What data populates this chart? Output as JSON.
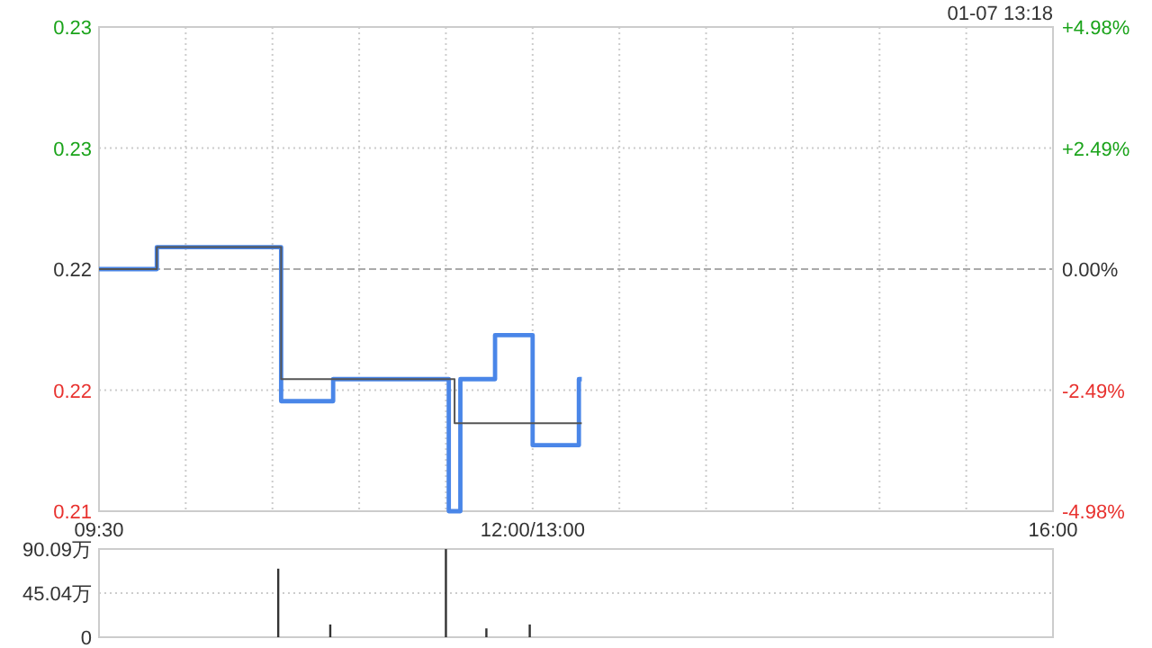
{
  "chart_data": [
    {
      "type": "step",
      "annotations": [
        "01-07 13:18"
      ],
      "categories": [
        "09:30",
        null,
        null,
        null,
        null,
        null,
        null,
        null,
        null,
        null,
        null,
        null,
        null,
        null,
        null,
        null,
        null,
        null,
        null,
        null,
        null,
        null,
        null,
        null,
        null,
        null,
        null,
        null,
        null,
        null,
        null,
        null,
        null,
        null,
        null,
        null,
        null,
        null,
        null,
        null,
        null,
        null,
        null,
        null,
        null,
        null,
        null,
        null,
        null,
        null,
        null,
        null,
        null,
        null,
        null,
        null,
        null,
        null,
        null,
        null,
        null,
        null,
        null,
        null,
        null,
        null,
        null,
        null,
        null,
        null,
        null,
        null,
        null,
        null,
        null,
        null,
        null,
        null,
        null,
        null,
        null,
        null,
        null,
        null,
        null,
        null,
        null,
        null,
        null,
        null,
        null,
        null,
        null,
        null,
        null,
        null,
        null,
        null,
        null,
        null,
        null,
        null,
        null,
        null,
        null,
        null,
        null,
        null,
        null,
        null,
        null,
        null,
        null,
        null,
        null,
        null,
        null,
        null,
        null,
        null,
        null,
        null,
        null,
        null,
        null,
        null,
        null,
        null,
        null,
        null,
        null,
        null,
        null,
        null,
        null,
        null,
        null,
        null,
        null,
        null,
        null,
        null,
        null,
        null,
        null,
        null,
        null,
        null,
        null,
        null,
        "12:00/13:00",
        null,
        null,
        null,
        null,
        null,
        null,
        null,
        null,
        null,
        null,
        null,
        null,
        null,
        null,
        null,
        null,
        null,
        null,
        null,
        null,
        null,
        null,
        null,
        null,
        null,
        null,
        null,
        null,
        null,
        null,
        null,
        null,
        null,
        null,
        null,
        null,
        null,
        null,
        null,
        null,
        null,
        null,
        null,
        null,
        null,
        null,
        null,
        null,
        null,
        null,
        null,
        null,
        null,
        null,
        null,
        null,
        null,
        null,
        null,
        null,
        null,
        null,
        null,
        null,
        null,
        null,
        null,
        null,
        null,
        null,
        null,
        null,
        null,
        null,
        null,
        null,
        null,
        null,
        null,
        null,
        null,
        null,
        null,
        null,
        null,
        null,
        null,
        null,
        null,
        null,
        null,
        null,
        null,
        null,
        null,
        null,
        null,
        null,
        null,
        null,
        null,
        null,
        null,
        null,
        null,
        null,
        null,
        null,
        null,
        null,
        null,
        null,
        null,
        null,
        null,
        null,
        null,
        null,
        null,
        null,
        null,
        null,
        null,
        null,
        null,
        null,
        null,
        null,
        null,
        null,
        null,
        null,
        null,
        null,
        null,
        null,
        null,
        null,
        null,
        null,
        null,
        null,
        null,
        null,
        null,
        null,
        null,
        null,
        null,
        null,
        null,
        null,
        null,
        null,
        null,
        null,
        null,
        null,
        null,
        null,
        null,
        null,
        null,
        null,
        null,
        null,
        null,
        null,
        null,
        null,
        null,
        null,
        null,
        null,
        null,
        null,
        null,
        null,
        null,
        "16:00"
      ],
      "ylim": [
        0.21,
        0.232
      ],
      "yticks": [
        {
          "value": 0.21,
          "label": "0.21"
        },
        {
          "value": 0.2155,
          "label": "0.22"
        },
        {
          "value": 0.221,
          "label": "0.22"
        },
        {
          "value": 0.2265,
          "label": "0.23"
        },
        {
          "value": 0.232,
          "label": "0.23"
        }
      ],
      "y2lim": [
        -4.98,
        4.98
      ],
      "y2ticks": [
        {
          "value": -4.98,
          "label": "-4.98%"
        },
        {
          "value": -2.49,
          "label": "-2.49%"
        },
        {
          "value": 0,
          "label": "0.00%"
        },
        {
          "value": 2.49,
          "label": "+2.49%"
        },
        {
          "value": 4.98,
          "label": "+4.98%"
        }
      ],
      "grid": true,
      "line_style": "solid",
      "ref_lines": [
        {
          "axis": "y",
          "value": 0.221,
          "color": "#aaaaaa",
          "line_style": "dashed"
        }
      ],
      "series": [
        {
          "color": "#4a86e8",
          "values": [
            0.221,
            0.221,
            0.221,
            0.221,
            0.221,
            0.221,
            0.221,
            0.221,
            0.221,
            0.221,
            0.221,
            0.221,
            0.221,
            0.221,
            0.221,
            0.221,
            0.221,
            0.221,
            0.221,
            0.221,
            0.222,
            0.222,
            0.222,
            0.222,
            0.222,
            0.222,
            0.222,
            0.222,
            0.222,
            0.222,
            0.222,
            0.222,
            0.222,
            0.222,
            0.222,
            0.222,
            0.222,
            0.222,
            0.222,
            0.222,
            0.222,
            0.222,
            0.222,
            0.222,
            0.222,
            0.222,
            0.222,
            0.222,
            0.222,
            0.222,
            0.222,
            0.222,
            0.222,
            0.222,
            0.222,
            0.222,
            0.222,
            0.222,
            0.222,
            0.222,
            0.222,
            0.222,
            0.222,
            0.215,
            0.215,
            0.215,
            0.215,
            0.215,
            0.215,
            0.215,
            0.215,
            0.215,
            0.215,
            0.215,
            0.215,
            0.215,
            0.215,
            0.215,
            0.215,
            0.215,
            0.215,
            0.216,
            0.216,
            0.216,
            0.216,
            0.216,
            0.216,
            0.216,
            0.216,
            0.216,
            0.216,
            0.216,
            0.216,
            0.216,
            0.216,
            0.216,
            0.216,
            0.216,
            0.216,
            0.216,
            0.216,
            0.216,
            0.216,
            0.216,
            0.216,
            0.216,
            0.216,
            0.216,
            0.216,
            0.216,
            0.216,
            0.216,
            0.216,
            0.216,
            0.216,
            0.216,
            0.216,
            0.216,
            0.216,
            0.216,
            0.216,
            0.21,
            0.21,
            0.21,
            0.21,
            0.216,
            0.216,
            0.216,
            0.216,
            0.216,
            0.216,
            0.216,
            0.216,
            0.216,
            0.216,
            0.216,
            0.216,
            0.218,
            0.218,
            0.218,
            0.218,
            0.218,
            0.218,
            0.218,
            0.218,
            0.218,
            0.218,
            0.218,
            0.218,
            0.218,
            0.213,
            0.213,
            0.213,
            0.213,
            0.213,
            0.213,
            0.213,
            0.213,
            0.213,
            0.213,
            0.213,
            0.213,
            0.213,
            0.213,
            0.213,
            0.213,
            0.216,
            0.216,
            null,
            null,
            null,
            null,
            null,
            null,
            null,
            null,
            null,
            null,
            null,
            null,
            null,
            null,
            null,
            null,
            null,
            null,
            null,
            null,
            null,
            null,
            null,
            null,
            null,
            null,
            null,
            null,
            null,
            null,
            null,
            null,
            null,
            null,
            null,
            null,
            null,
            null,
            null,
            null,
            null,
            null,
            null,
            null,
            null,
            null,
            null,
            null,
            null,
            null,
            null,
            null,
            null,
            null,
            null,
            null,
            null,
            null,
            null,
            null,
            null,
            null,
            null,
            null,
            null,
            null,
            null,
            null,
            null,
            null,
            null,
            null,
            null,
            null,
            null,
            null,
            null,
            null,
            null,
            null,
            null,
            null,
            null,
            null,
            null,
            null,
            null,
            null,
            null,
            null,
            null,
            null,
            null,
            null,
            null,
            null,
            null,
            null,
            null,
            null,
            null,
            null,
            null,
            null,
            null,
            null,
            null,
            null,
            null,
            null,
            null,
            null,
            null,
            null,
            null,
            null,
            null,
            null,
            null,
            null,
            null,
            null,
            null,
            null,
            null,
            null,
            null,
            null,
            null,
            null,
            null,
            null,
            null,
            null,
            null,
            null,
            null,
            null,
            null,
            null,
            null,
            null,
            null,
            null,
            null,
            null,
            null,
            null,
            null,
            null,
            null,
            null,
            null,
            null,
            null,
            null,
            null,
            null,
            null,
            null,
            null,
            null,
            null
          ]
        },
        {
          "color": "#555555",
          "values": [
            0.221,
            0.221,
            0.221,
            0.221,
            0.221,
            0.221,
            0.221,
            0.221,
            0.221,
            0.221,
            0.221,
            0.221,
            0.221,
            0.221,
            0.221,
            0.221,
            0.221,
            0.221,
            0.221,
            0.221,
            0.222,
            0.222,
            0.222,
            0.222,
            0.222,
            0.222,
            0.222,
            0.222,
            0.222,
            0.222,
            0.222,
            0.222,
            0.222,
            0.222,
            0.222,
            0.222,
            0.222,
            0.222,
            0.222,
            0.222,
            0.222,
            0.222,
            0.222,
            0.222,
            0.222,
            0.222,
            0.222,
            0.222,
            0.222,
            0.222,
            0.222,
            0.222,
            0.222,
            0.222,
            0.222,
            0.222,
            0.222,
            0.222,
            0.222,
            0.222,
            0.222,
            0.222,
            0.222,
            0.216,
            0.216,
            0.216,
            0.216,
            0.216,
            0.216,
            0.216,
            0.216,
            0.216,
            0.216,
            0.216,
            0.216,
            0.216,
            0.216,
            0.216,
            0.216,
            0.216,
            0.216,
            0.216,
            0.216,
            0.216,
            0.216,
            0.216,
            0.216,
            0.216,
            0.216,
            0.216,
            0.216,
            0.216,
            0.216,
            0.216,
            0.216,
            0.216,
            0.216,
            0.216,
            0.216,
            0.216,
            0.216,
            0.216,
            0.216,
            0.216,
            0.216,
            0.216,
            0.216,
            0.216,
            0.216,
            0.216,
            0.216,
            0.216,
            0.216,
            0.216,
            0.216,
            0.216,
            0.216,
            0.216,
            0.216,
            0.216,
            0.216,
            0.216,
            0.216,
            0.214,
            0.214,
            0.214,
            0.214,
            0.214,
            0.214,
            0.214,
            0.214,
            0.214,
            0.214,
            0.214,
            0.214,
            0.214,
            0.214,
            0.214,
            0.214,
            0.214,
            0.214,
            0.214,
            0.214,
            0.214,
            0.214,
            0.214,
            0.214,
            0.214,
            0.214,
            0.214,
            0.214,
            0.214,
            0.214,
            0.214,
            0.214,
            0.214,
            0.214,
            0.214,
            0.214,
            0.214,
            0.214,
            0.214,
            0.214,
            0.214,
            0.214,
            0.214,
            0.214,
            0.214,
            null,
            null,
            null,
            null,
            null,
            null,
            null,
            null,
            null,
            null,
            null,
            null,
            null,
            null,
            null,
            null,
            null,
            null,
            null,
            null,
            null,
            null,
            null,
            null,
            null,
            null,
            null,
            null,
            null,
            null,
            null,
            null,
            null,
            null,
            null,
            null,
            null,
            null,
            null,
            null,
            null,
            null,
            null,
            null,
            null,
            null,
            null,
            null,
            null,
            null,
            null,
            null,
            null,
            null,
            null,
            null,
            null,
            null,
            null,
            null,
            null,
            null,
            null,
            null,
            null,
            null,
            null,
            null,
            null,
            null,
            null,
            null,
            null,
            null,
            null,
            null,
            null,
            null,
            null,
            null,
            null,
            null,
            null,
            null,
            null,
            null,
            null,
            null,
            null,
            null,
            null,
            null,
            null,
            null,
            null,
            null,
            null,
            null,
            null,
            null,
            null,
            null,
            null,
            null,
            null,
            null,
            null,
            null,
            null,
            null,
            null,
            null,
            null,
            null,
            null,
            null,
            null,
            null,
            null,
            null,
            null,
            null,
            null,
            null,
            null,
            null,
            null,
            null,
            null,
            null,
            null,
            null,
            null,
            null,
            null,
            null,
            null,
            null,
            null,
            null,
            null,
            null,
            null,
            null,
            null,
            null,
            null,
            null,
            null,
            null,
            null,
            null,
            null,
            null,
            null,
            null,
            null,
            null,
            null,
            null,
            null,
            null,
            null
          ]
        }
      ]
    },
    {
      "type": "bar",
      "categories": [
        null,
        null,
        null,
        null,
        null,
        null,
        null,
        null,
        null,
        null,
        null,
        null,
        null,
        null,
        null,
        null,
        null,
        null,
        null,
        null,
        null,
        null,
        null,
        null,
        null,
        null,
        null,
        null,
        null,
        null,
        null,
        null,
        null,
        null,
        null,
        null,
        null,
        null,
        null,
        null,
        null,
        null,
        null,
        null,
        null,
        null,
        null,
        null,
        null,
        null,
        null,
        null,
        null,
        null,
        null,
        null,
        null,
        null,
        null,
        null,
        null,
        null,
        null,
        null,
        null,
        null,
        null,
        null,
        null,
        null,
        null,
        null,
        null,
        null,
        null,
        null,
        null,
        null,
        null,
        null,
        null,
        null,
        null,
        null,
        null,
        null,
        null,
        null,
        null,
        null,
        null,
        null,
        null,
        null,
        null,
        null,
        null,
        null,
        null,
        null,
        null,
        null,
        null,
        null,
        null,
        null,
        null,
        null,
        null,
        null,
        null,
        null,
        null,
        null,
        null,
        null,
        null,
        null,
        null,
        null,
        null,
        null,
        null,
        null,
        null,
        null,
        null,
        null,
        null,
        null,
        null,
        null,
        null,
        null,
        null,
        null,
        null,
        null,
        null,
        null,
        null,
        null,
        null,
        null,
        null,
        null,
        null,
        null,
        null,
        null,
        null,
        null,
        null,
        null,
        null,
        null,
        null,
        null,
        null,
        null,
        null,
        null,
        null,
        null,
        null,
        null,
        null,
        null,
        null,
        null,
        null,
        null,
        null,
        null,
        null,
        null,
        null,
        null,
        null,
        null,
        null,
        null,
        null,
        null,
        null,
        null,
        null,
        null,
        null,
        null,
        null,
        null,
        null,
        null,
        null,
        null,
        null,
        null,
        null,
        null,
        null,
        null,
        null,
        null,
        null,
        null,
        null,
        null,
        null,
        null,
        null,
        null,
        null,
        null,
        null,
        null,
        null,
        null,
        null,
        null,
        null,
        null,
        null,
        null,
        null,
        null,
        null,
        null,
        null,
        null,
        null,
        null,
        null,
        null,
        null,
        null,
        null,
        null,
        null,
        null,
        null,
        null,
        null,
        null,
        null,
        null,
        null,
        null,
        null,
        null,
        null,
        null,
        null,
        null,
        null,
        null,
        null,
        null,
        null,
        null,
        null,
        null,
        null,
        null,
        null,
        null,
        null,
        null,
        null,
        null,
        null,
        null,
        null,
        null,
        null,
        null,
        null,
        null,
        null,
        null,
        null,
        null,
        null,
        null,
        null,
        null,
        null,
        null,
        null,
        null,
        null,
        null,
        null,
        null,
        null,
        null,
        null,
        null,
        null,
        null,
        null,
        null,
        null,
        null,
        null,
        null,
        null,
        null,
        null,
        null,
        null,
        null,
        null,
        null,
        null,
        null,
        null,
        null,
        null,
        null,
        null,
        null,
        null,
        null,
        null,
        null,
        null,
        null,
        null,
        null,
        null
      ],
      "ylim": [
        0,
        90.09
      ],
      "yticks": [
        0,
        {
          "value": 45.04,
          "label": "45.04万"
        },
        {
          "value": 90.09,
          "label": "90.09万"
        }
      ],
      "grid": "y",
      "color": "#333333",
      "values": [
        null,
        null,
        null,
        null,
        null,
        null,
        null,
        null,
        null,
        null,
        null,
        null,
        null,
        null,
        null,
        null,
        null,
        null,
        null,
        null,
        null,
        null,
        null,
        null,
        null,
        null,
        null,
        null,
        null,
        null,
        null,
        null,
        null,
        null,
        null,
        null,
        null,
        null,
        null,
        null,
        null,
        null,
        null,
        null,
        null,
        null,
        null,
        null,
        null,
        null,
        null,
        null,
        null,
        null,
        null,
        null,
        null,
        null,
        null,
        null,
        null,
        null,
        70,
        null,
        null,
        null,
        null,
        null,
        null,
        null,
        null,
        null,
        null,
        null,
        null,
        null,
        null,
        null,
        null,
        null,
        13,
        null,
        null,
        null,
        null,
        null,
        null,
        null,
        null,
        null,
        null,
        null,
        null,
        null,
        null,
        null,
        null,
        null,
        null,
        null,
        null,
        null,
        null,
        null,
        null,
        null,
        null,
        null,
        null,
        null,
        null,
        null,
        null,
        null,
        null,
        null,
        null,
        null,
        null,
        null,
        90,
        null,
        null,
        null,
        null,
        null,
        null,
        null,
        null,
        null,
        null,
        null,
        null,
        null,
        9,
        null,
        null,
        null,
        null,
        null,
        null,
        null,
        null,
        null,
        null,
        null,
        null,
        null,
        null,
        13,
        null,
        null,
        null,
        null,
        null,
        null,
        null,
        null,
        null,
        null,
        null,
        null,
        null,
        null,
        null,
        null,
        null,
        null,
        null,
        null,
        null,
        null,
        null,
        null,
        null,
        null,
        null,
        null,
        null,
        null,
        null,
        null,
        null,
        null,
        null,
        null,
        null,
        null,
        null,
        null,
        null,
        null,
        null,
        null,
        null,
        null,
        null,
        null,
        null,
        null,
        null,
        null,
        null,
        null,
        null,
        null,
        null,
        null,
        null,
        null,
        null,
        null,
        null,
        null,
        null,
        null,
        null,
        null,
        null,
        null,
        null,
        null,
        null,
        null,
        null,
        null,
        null,
        null,
        null,
        null,
        null,
        null,
        null,
        null,
        null,
        null,
        null,
        null,
        null,
        null,
        null,
        null,
        null,
        null,
        null,
        null,
        null,
        null,
        null,
        null,
        null,
        null,
        null,
        null,
        null,
        null,
        null,
        null,
        null,
        null,
        null,
        null,
        null,
        null,
        null,
        null,
        null,
        null,
        null,
        null,
        null,
        null,
        null,
        null,
        null,
        null,
        null,
        null,
        null,
        null,
        null,
        null,
        null,
        null,
        null,
        null,
        null,
        null,
        null,
        null,
        null,
        null,
        null,
        null,
        null,
        null,
        null,
        null,
        null,
        null,
        null,
        null,
        null,
        null,
        null,
        null,
        null,
        null,
        null,
        null,
        null,
        null,
        null,
        null,
        null,
        null,
        null,
        null,
        null,
        null,
        null,
        null,
        null,
        null,
        null,
        null,
        null,
        null,
        null,
        null,
        null
      ]
    }
  ]
}
